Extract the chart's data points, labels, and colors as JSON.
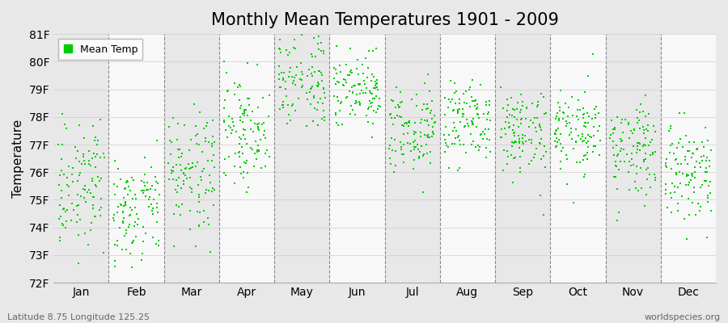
{
  "title": "Monthly Mean Temperatures 1901 - 2009",
  "ylabel": "Temperature",
  "legend_label": "Mean Temp",
  "bottom_left_text": "Latitude 8.75 Longitude 125.25",
  "bottom_right_text": "worldspecies.org",
  "ylim": [
    72,
    81
  ],
  "yticks": [
    72,
    73,
    74,
    75,
    76,
    77,
    78,
    79,
    80,
    81
  ],
  "ytick_labels": [
    "72F",
    "73F",
    "74F",
    "75F",
    "76F",
    "77F",
    "78F",
    "79F",
    "80F",
    "81F"
  ],
  "months": [
    "Jan",
    "Feb",
    "Mar",
    "Apr",
    "May",
    "Jun",
    "Jul",
    "Aug",
    "Sep",
    "Oct",
    "Nov",
    "Dec"
  ],
  "dot_color": "#00cc00",
  "bg_even_color": "#e8e8e8",
  "bg_odd_color": "#f8f8f8",
  "title_fontsize": 15,
  "axis_label_fontsize": 11,
  "tick_label_fontsize": 10,
  "n_years": 109,
  "monthly_means": [
    75.5,
    74.8,
    76.0,
    77.5,
    79.5,
    79.0,
    77.5,
    77.8,
    77.5,
    77.5,
    76.8,
    76.0
  ],
  "monthly_stds": [
    1.0,
    1.0,
    1.1,
    1.0,
    0.9,
    0.8,
    0.8,
    0.8,
    0.8,
    0.8,
    0.9,
    1.0
  ],
  "seed": 123,
  "dot_size": 4,
  "dashed_line_color": "#888888"
}
